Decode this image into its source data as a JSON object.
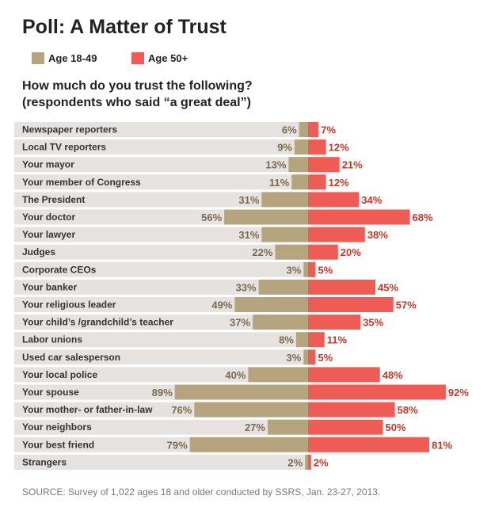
{
  "title": "Poll: A Matter of Trust",
  "subtitle_line1": "How much do you trust the following?",
  "subtitle_line2": "(respondents who said “a great deal”)",
  "source": "SOURCE: Survey of 1,022 ages 18 and older conducted by SSRS, Jan. 23-27, 2013.",
  "colors": {
    "young": "#b5a47e",
    "old": "#ef5b55",
    "young_label": "#7a6b4d",
    "old_label": "#c0392b",
    "row_bg": "#e6e2df"
  },
  "chart_data": {
    "type": "bar",
    "orientation": "horizontal-diverging",
    "title": "Poll: A Matter of Trust",
    "unit": "%",
    "categories": [
      "Newspaper reporters",
      "Local TV reporters",
      "Your mayor",
      "Your member of Congress",
      "The President",
      "Your doctor",
      "Your lawyer",
      "Judges",
      "Corporate CEOs",
      "Your banker",
      "Your religious leader",
      "Your child’s /grandchild’s teacher",
      "Labor unions",
      "Used car salesperson",
      "Your local police",
      "Your spouse",
      "Your mother- or father-in-law",
      "Your neighbors",
      "Your best friend",
      "Strangers"
    ],
    "series": [
      {
        "name": "Age 18-49",
        "values": [
          6,
          9,
          13,
          11,
          31,
          56,
          31,
          22,
          3,
          33,
          49,
          37,
          8,
          3,
          40,
          89,
          76,
          27,
          79,
          2
        ]
      },
      {
        "name": "Age 50+",
        "values": [
          7,
          12,
          21,
          12,
          34,
          68,
          38,
          20,
          5,
          45,
          57,
          35,
          11,
          5,
          48,
          92,
          58,
          50,
          81,
          2
        ]
      }
    ],
    "xlim": [
      0,
      100
    ]
  }
}
